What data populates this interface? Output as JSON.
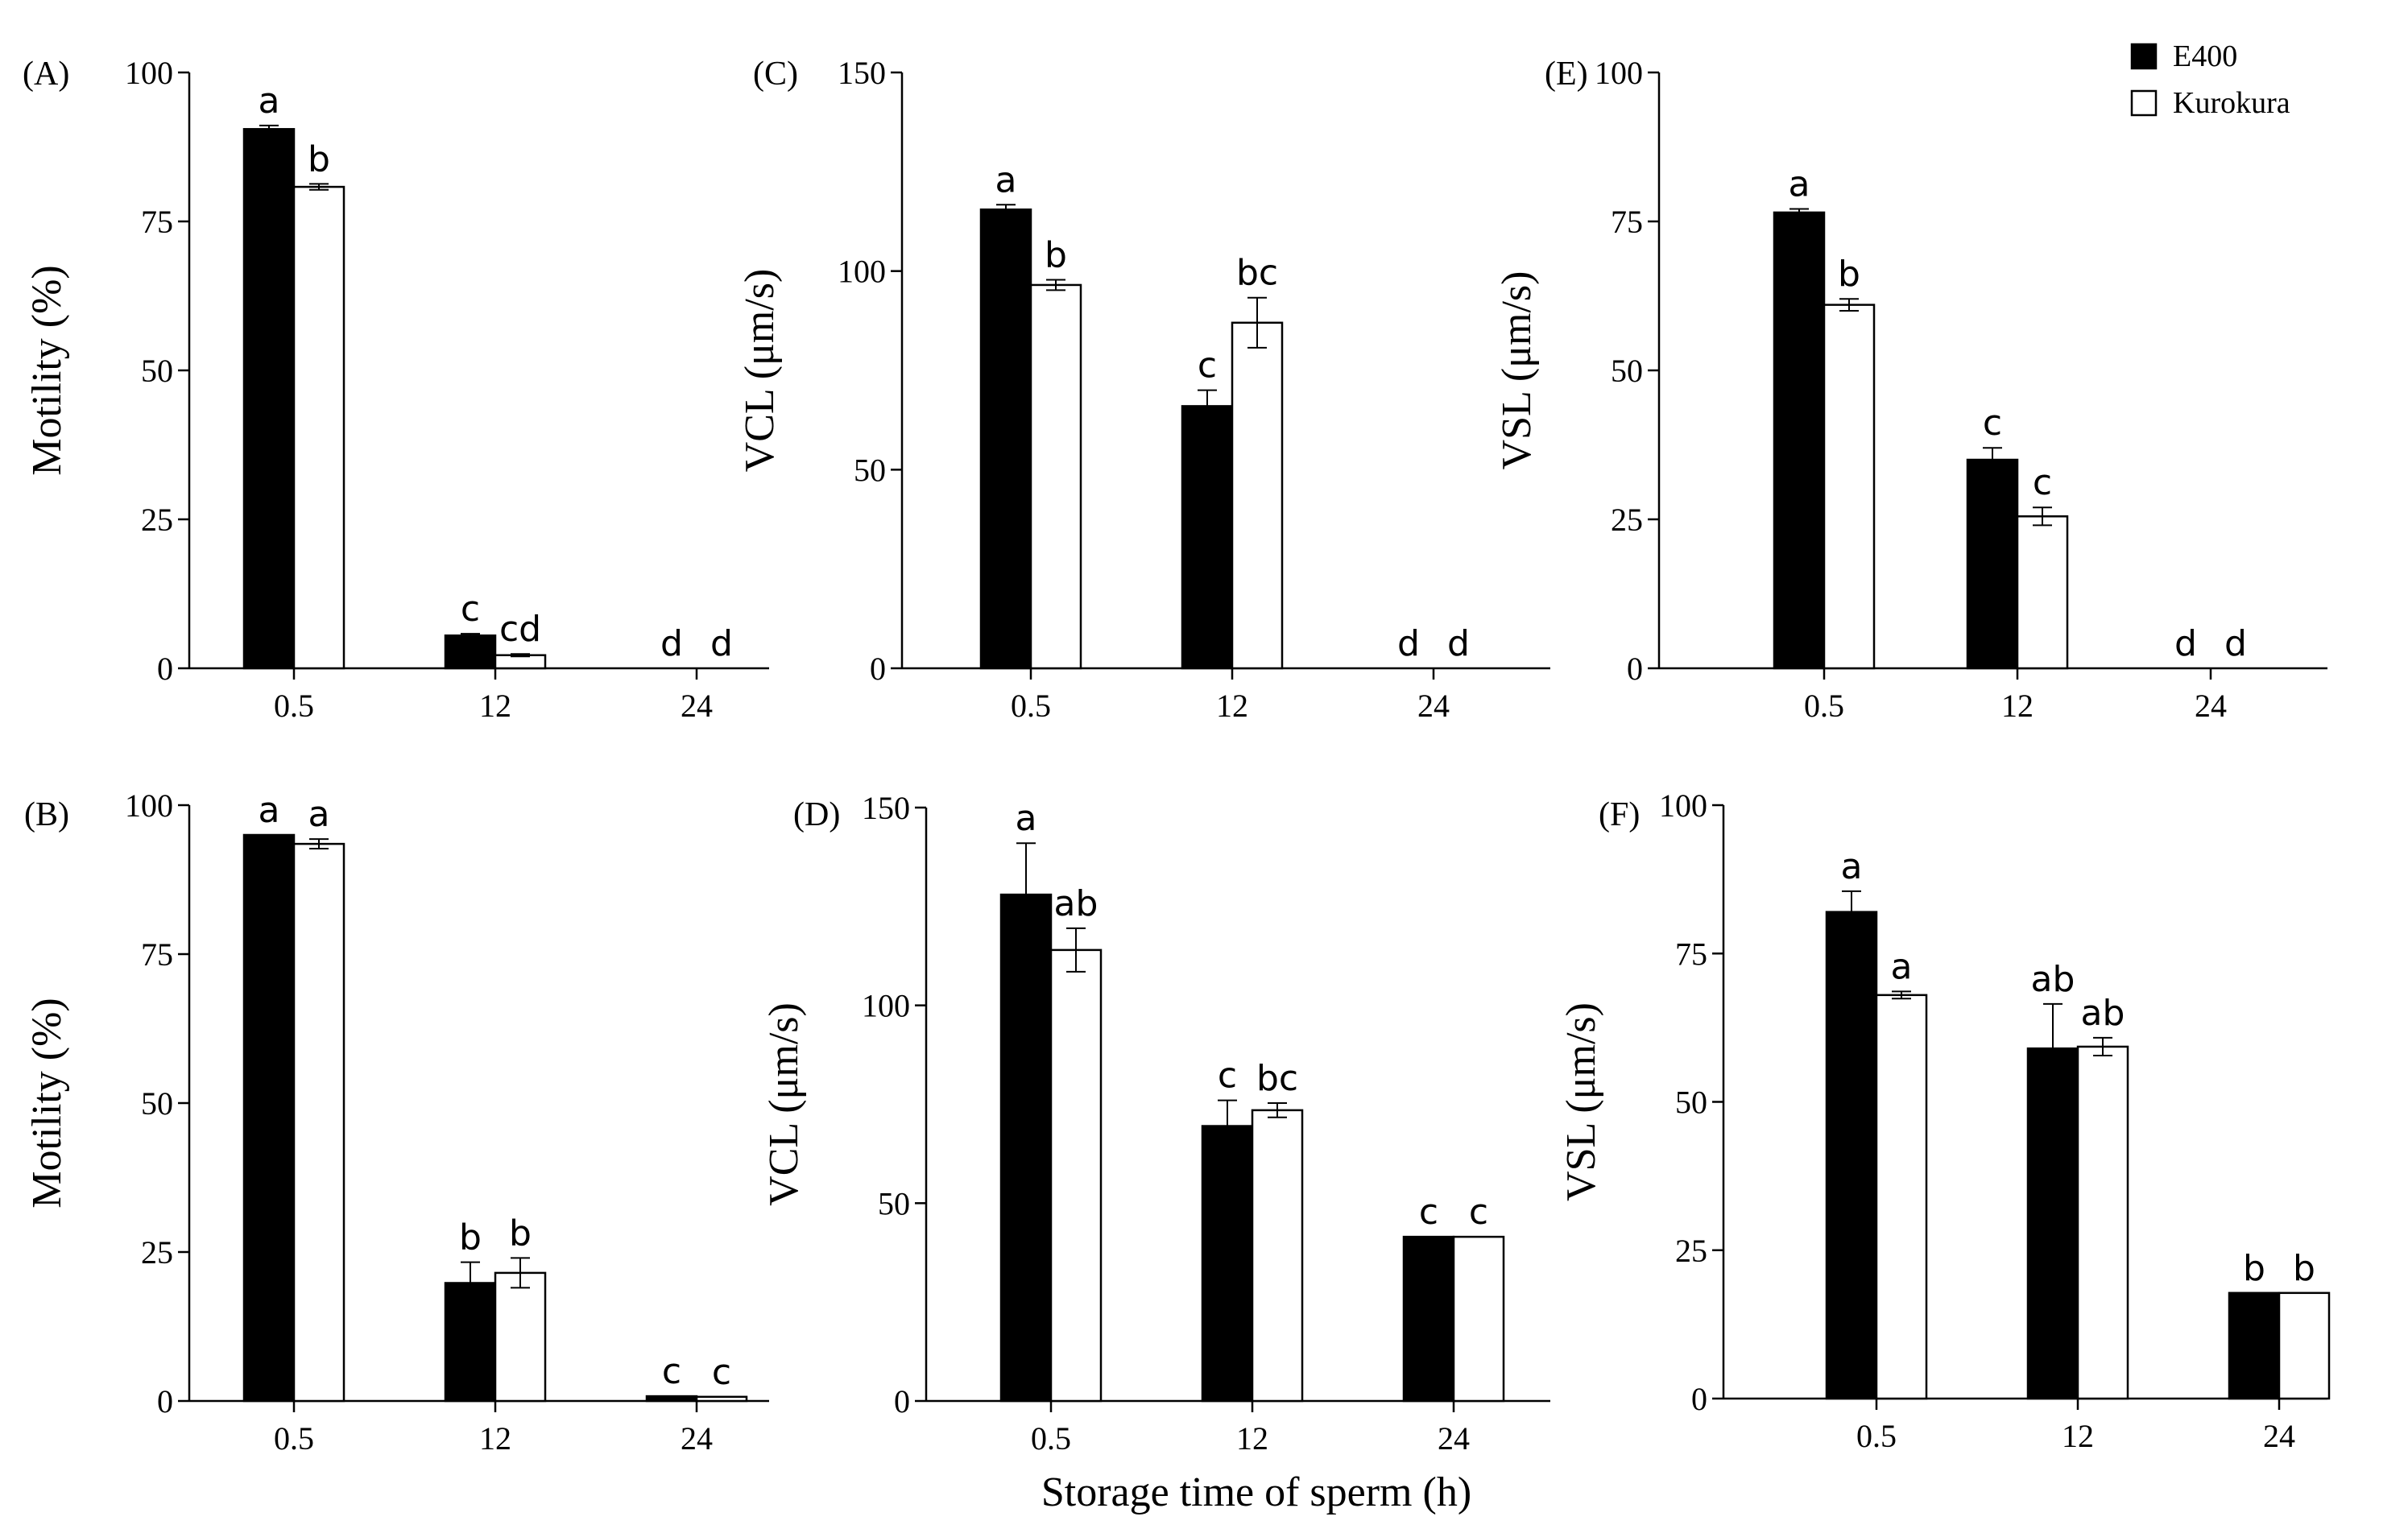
{
  "figure": {
    "xlabel": "Storage time of sperm (h)"
  },
  "legend": {
    "position": "top-right",
    "entries": [
      {
        "name": "E400",
        "color": "#000000"
      },
      {
        "name": "Kurokura",
        "color": "#ffffff"
      }
    ]
  },
  "chart_data": [
    {
      "panel": "(A)",
      "type": "bar",
      "ylabel": "Motility (%)",
      "ylim": [
        0,
        100
      ],
      "yticks": [
        0,
        25,
        50,
        75,
        100
      ],
      "categories": [
        "0.5",
        "12",
        "24"
      ],
      "series": [
        {
          "name": "E400",
          "values": [
            90.5,
            5.5,
            0
          ],
          "errors": [
            0.6,
            0.3,
            0
          ],
          "letters": [
            "a",
            "c",
            "d"
          ]
        },
        {
          "name": "Kurokura",
          "values": [
            80.8,
            2.2,
            0
          ],
          "errors": [
            0.5,
            0.2,
            0
          ],
          "letters": [
            "b",
            "cd",
            "d"
          ]
        }
      ]
    },
    {
      "panel": "(B)",
      "type": "bar",
      "ylabel": "Motility (%)",
      "ylim": [
        0,
        100
      ],
      "yticks": [
        0,
        25,
        50,
        75,
        100
      ],
      "categories": [
        "0.5",
        "12",
        "24"
      ],
      "series": [
        {
          "name": "E400",
          "values": [
            95,
            19.8,
            0.8
          ],
          "errors": [
            0,
            3.5,
            0
          ],
          "letters": [
            "a",
            "b",
            "c"
          ]
        },
        {
          "name": "Kurokura",
          "values": [
            93.5,
            21.5,
            0.7
          ],
          "errors": [
            0.8,
            2.5,
            0
          ],
          "letters": [
            "a",
            "b",
            "c"
          ]
        }
      ]
    },
    {
      "panel": "(C)",
      "type": "bar",
      "ylabel": "VCL (μm/s)",
      "ylim": [
        0,
        150
      ],
      "yticks": [
        0,
        50,
        100,
        150
      ],
      "categories": [
        "0.5",
        "12",
        "24"
      ],
      "series": [
        {
          "name": "E400",
          "values": [
            115.5,
            66,
            0
          ],
          "errors": [
            1.2,
            4,
            0
          ],
          "letters": [
            "a",
            "c",
            "d"
          ]
        },
        {
          "name": "Kurokura",
          "values": [
            96.5,
            87,
            0
          ],
          "errors": [
            1.3,
            6.3,
            0
          ],
          "letters": [
            "b",
            "bc",
            "d"
          ]
        }
      ]
    },
    {
      "panel": "(D)",
      "type": "bar",
      "ylabel": "VCL (μm/s)",
      "ylim": [
        0,
        150
      ],
      "yticks": [
        0,
        50,
        100,
        150
      ],
      "categories": [
        "0.5",
        "12",
        "24"
      ],
      "series": [
        {
          "name": "E400",
          "values": [
            128,
            69.5,
            41.5
          ],
          "errors": [
            13,
            6.5,
            0
          ],
          "letters": [
            "a",
            "c",
            "c"
          ]
        },
        {
          "name": "Kurokura",
          "values": [
            114,
            73.5,
            41.5
          ],
          "errors": [
            5.5,
            1.8,
            0
          ],
          "letters": [
            "ab",
            "bc",
            "c"
          ]
        }
      ]
    },
    {
      "panel": "(E)",
      "type": "bar",
      "ylabel": "VSL (μm/s)",
      "ylim": [
        0,
        100
      ],
      "yticks": [
        0,
        25,
        50,
        75,
        100
      ],
      "categories": [
        "0.5",
        "12",
        "24"
      ],
      "series": [
        {
          "name": "E400",
          "values": [
            76.5,
            35,
            0
          ],
          "errors": [
            0.6,
            2,
            0
          ],
          "letters": [
            "a",
            "c",
            "d"
          ]
        },
        {
          "name": "Kurokura",
          "values": [
            61,
            25.5,
            0
          ],
          "errors": [
            1,
            1.5,
            0
          ],
          "letters": [
            "b",
            "c",
            "d"
          ]
        }
      ]
    },
    {
      "panel": "(F)",
      "type": "bar",
      "ylabel": "VSL (μm/s)",
      "ylim": [
        0,
        100
      ],
      "yticks": [
        0,
        25,
        50,
        75,
        100
      ],
      "categories": [
        "0.5",
        "12",
        "24"
      ],
      "series": [
        {
          "name": "E400",
          "values": [
            82,
            59,
            17.8
          ],
          "errors": [
            3.5,
            7.5,
            0
          ],
          "letters": [
            "a",
            "ab",
            "b"
          ]
        },
        {
          "name": "Kurokura",
          "values": [
            68,
            59.3,
            17.8
          ],
          "errors": [
            0.6,
            1.5,
            0
          ],
          "letters": [
            "a",
            "ab",
            "b"
          ]
        }
      ]
    }
  ]
}
